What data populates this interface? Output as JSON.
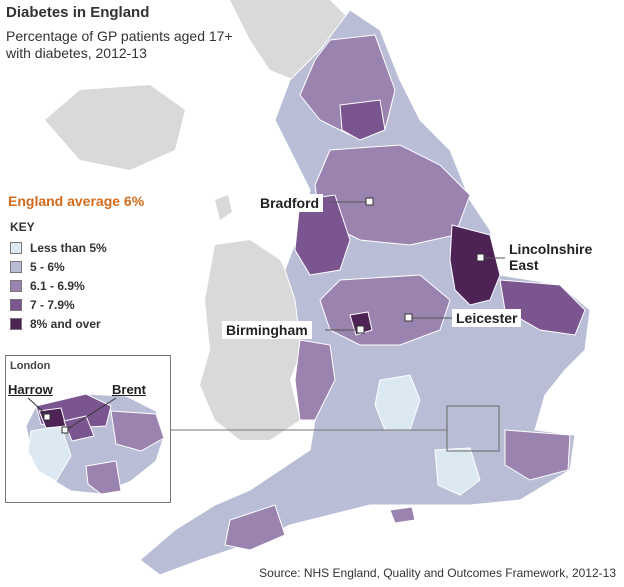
{
  "title": "Diabetes in England",
  "subtitle": "Percentage of GP patients aged 17+ with diabetes, 2012-13",
  "england_average": "England average 6%",
  "key": {
    "title": "KEY",
    "items": [
      {
        "label": "Less than 5%",
        "color": "#dce9f2"
      },
      {
        "label": "5 - 6%",
        "color": "#b9bed6"
      },
      {
        "label": "6.1 - 6.9%",
        "color": "#9a83ae"
      },
      {
        "label": "7 - 7.9%",
        "color": "#7a5590"
      },
      {
        "label": "8% and over",
        "color": "#4d2356"
      }
    ]
  },
  "labels": {
    "bradford": "Bradford",
    "lincolnshire_east": "Lincolnshire East",
    "lincolnshire_line1": "Lincolnshire",
    "lincolnshire_line2": "East",
    "birmingham": "Birmingham",
    "leicester": "Leicester"
  },
  "inset": {
    "title": "London",
    "harrow": "Harrow",
    "brent": "Brent"
  },
  "source": "Source: NHS England, Quality and Outcomes Framework, 2012-13",
  "colors": {
    "background_land": "#d9d9d9",
    "leader_line": "#555555"
  }
}
